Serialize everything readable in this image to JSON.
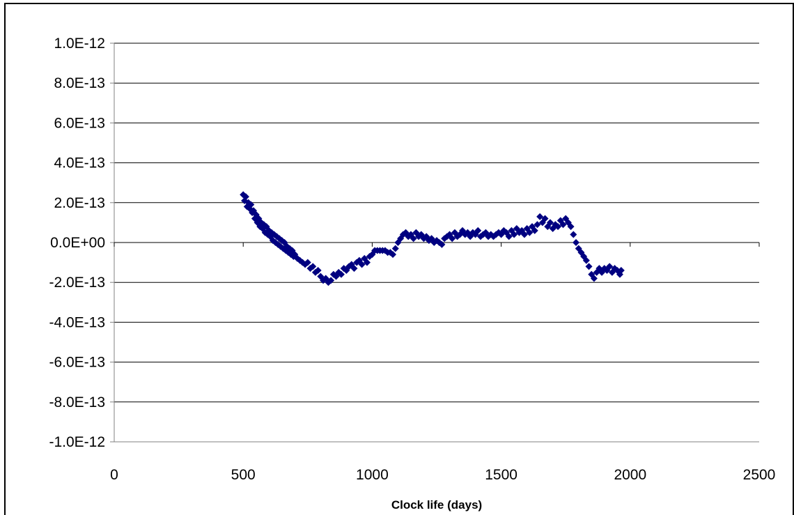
{
  "chart_data": {
    "type": "scatter",
    "title": "",
    "xlabel": "Clock life (days)",
    "ylabel": "",
    "xlim": [
      0,
      2500
    ],
    "ylim": [
      -1e-12,
      1e-12
    ],
    "x_ticks": [
      0,
      500,
      1000,
      1500,
      2000,
      2500
    ],
    "x_tick_labels": [
      "0",
      "500",
      "1000",
      "1500",
      "2000",
      "2500"
    ],
    "y_ticks": [
      1e-12,
      8e-13,
      6e-13,
      4e-13,
      2e-13,
      0,
      -2e-13,
      -4e-13,
      -6e-13,
      -8e-13,
      -1e-12
    ],
    "y_tick_labels": [
      "1.0E-12",
      "8.0E-13",
      "6.0E-13",
      "4.0E-13",
      "2.0E-13",
      "0.0E+00",
      "-2.0E-13",
      "-4.0E-13",
      "-6.0E-13",
      "-8.0E-13",
      "-1.0E-12"
    ],
    "grid": {
      "horizontal": true,
      "vertical": false
    },
    "legend": "none",
    "marker": "diamond",
    "colors": {
      "marker": "#000080",
      "grid": "#000000",
      "axis": "#808080"
    },
    "series": [
      {
        "x": [
          500,
          505,
          510,
          515,
          520,
          525,
          530,
          535,
          540,
          545,
          550,
          555,
          560,
          565,
          570,
          575,
          580,
          585,
          590,
          595,
          600,
          605,
          610,
          615,
          620,
          625,
          630,
          635,
          640,
          645,
          650,
          655,
          660,
          665,
          670,
          675,
          680,
          685,
          690,
          695,
          700,
          710,
          720,
          730,
          740,
          750,
          760,
          770,
          780,
          790,
          800,
          810,
          820,
          830,
          840,
          850,
          860,
          870,
          880,
          890,
          900,
          910,
          920,
          930,
          940,
          950,
          960,
          970,
          980,
          990,
          1000,
          1010,
          1020,
          1030,
          1040,
          1050,
          1060,
          1070,
          1080,
          1090,
          1100,
          1110,
          1120,
          1130,
          1140,
          1150,
          1160,
          1170,
          1180,
          1190,
          1200,
          1210,
          1220,
          1230,
          1240,
          1250,
          1260,
          1270,
          1280,
          1290,
          1300,
          1310,
          1320,
          1330,
          1340,
          1350,
          1360,
          1370,
          1380,
          1390,
          1400,
          1410,
          1420,
          1430,
          1440,
          1450,
          1460,
          1470,
          1480,
          1490,
          1500,
          1510,
          1520,
          1530,
          1540,
          1550,
          1560,
          1570,
          1580,
          1590,
          1600,
          1610,
          1620,
          1630,
          1640,
          1650,
          1660,
          1670,
          1680,
          1690,
          1700,
          1710,
          1720,
          1730,
          1740,
          1750,
          1760,
          1770,
          1780,
          1790,
          1800,
          1810,
          1820,
          1830,
          1840,
          1850,
          1860,
          1870,
          1880,
          1890,
          1900,
          1910,
          1920,
          1930,
          1940,
          1950,
          1960,
          1965
        ],
        "y": [
          2.4e-13,
          2.1e-13,
          2.3e-13,
          1.8e-13,
          2e-13,
          1.7e-13,
          1.9e-13,
          1.5e-13,
          1.6e-13,
          1.2e-13,
          1.4e-13,
          1e-13,
          1.2e-13,
          8e-14,
          1e-13,
          7e-14,
          9e-14,
          5e-14,
          8e-14,
          4e-14,
          6e-14,
          3e-14,
          5e-14,
          1e-14,
          4e-14,
          0,
          3e-14,
          -1e-14,
          2e-14,
          -2e-14,
          1e-14,
          -3e-14,
          0,
          -4e-14,
          -2e-14,
          -5e-14,
          -3e-14,
          -6e-14,
          -4e-14,
          -7e-14,
          -6e-14,
          -8e-14,
          -9e-14,
          -1e-13,
          -1.1e-13,
          -1e-13,
          -1.3e-13,
          -1.2e-13,
          -1.5e-13,
          -1.4e-13,
          -1.7e-13,
          -1.9e-13,
          -1.8e-13,
          -2e-13,
          -1.9e-13,
          -1.6e-13,
          -1.7e-13,
          -1.5e-13,
          -1.6e-13,
          -1.3e-13,
          -1.4e-13,
          -1.2e-13,
          -1.1e-13,
          -1.3e-13,
          -1e-13,
          -9e-14,
          -1.1e-13,
          -8e-14,
          -1e-13,
          -7e-14,
          -6e-14,
          -4e-14,
          -4e-14,
          -4e-14,
          -4e-14,
          -4e-14,
          -5e-14,
          -5e-14,
          -6e-14,
          -3e-14,
          0,
          2e-14,
          4e-14,
          5e-14,
          3e-14,
          4e-14,
          2e-14,
          5e-14,
          3e-14,
          4e-14,
          2e-14,
          3e-14,
          1e-14,
          2e-14,
          0,
          1e-14,
          0,
          -1e-14,
          2e-14,
          3e-14,
          4e-14,
          2e-14,
          5e-14,
          3e-14,
          4e-14,
          6e-14,
          4e-14,
          5e-14,
          3e-14,
          5e-14,
          4e-14,
          6e-14,
          3e-14,
          4e-14,
          5e-14,
          3e-14,
          4e-14,
          3e-14,
          4e-14,
          5e-14,
          4e-14,
          6e-14,
          5e-14,
          3e-14,
          6e-14,
          4e-14,
          7e-14,
          5e-14,
          6e-14,
          4e-14,
          7e-14,
          5e-14,
          8e-14,
          6e-14,
          9e-14,
          1.3e-13,
          1e-13,
          1.2e-13,
          8e-14,
          1e-13,
          7e-14,
          9e-14,
          8e-14,
          1.1e-13,
          9e-14,
          1.2e-13,
          1e-13,
          8e-14,
          4e-14,
          0,
          -3e-14,
          -5e-14,
          -7e-14,
          -9e-14,
          -1.2e-13,
          -1.6e-13,
          -1.8e-13,
          -1.5e-13,
          -1.3e-13,
          -1.5e-13,
          -1.3e-13,
          -1.4e-13,
          -1.2e-13,
          -1.5e-13,
          -1.3e-13,
          -1.4e-13,
          -1.6e-13,
          -1.4e-13
        ]
      }
    ]
  }
}
